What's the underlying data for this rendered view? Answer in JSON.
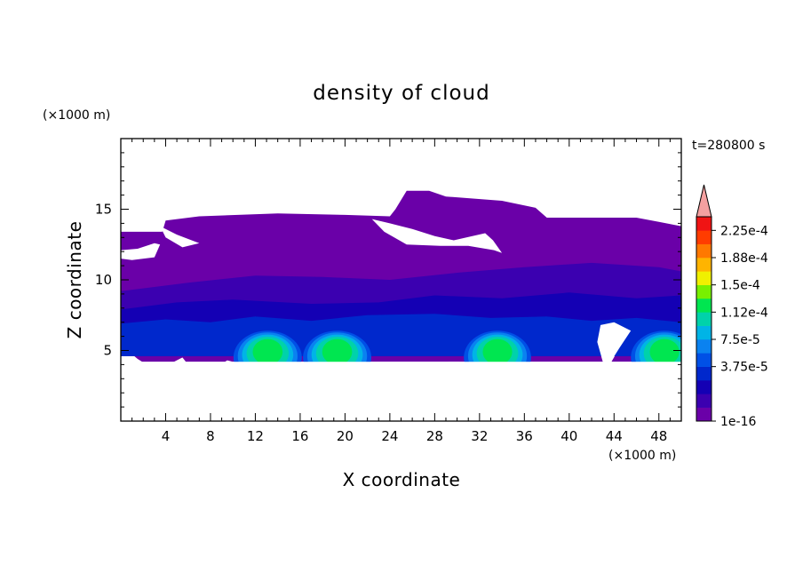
{
  "chart_data": {
    "type": "heatmap",
    "subtype": "filled-contour",
    "title": "density of cloud",
    "time_label": "t=280800 s",
    "xlabel": "X coordinate",
    "ylabel": "Z coordinate",
    "x_unit": "(×1000 m)",
    "y_unit": "(×1000 m)",
    "xlim": [
      0,
      50
    ],
    "ylim": [
      0,
      20
    ],
    "x_ticks": [
      "4",
      "8",
      "12",
      "16",
      "20",
      "24",
      "28",
      "32",
      "36",
      "40",
      "44",
      "48"
    ],
    "y_ticks": [
      "5",
      "10",
      "15"
    ],
    "colorbar": {
      "labels": [
        "2.25e-4",
        "1.88e-4",
        "1.5e-4",
        "1.12e-4",
        "7.5e-5",
        "3.75e-5",
        "1e-16"
      ],
      "colors": [
        "#6a00a8",
        "#3b00b0",
        "#1400b4",
        "#0028cc",
        "#0050e6",
        "#0a82f0",
        "#00b4e6",
        "#00d2aa",
        "#00e650",
        "#78f000",
        "#f0f000",
        "#ffb400",
        "#ff7800",
        "#ff3c00",
        "#f01414"
      ],
      "extend_color": "#f4a0a0"
    },
    "cloud_regions": [
      {
        "level": "1e-16",
        "x_range": [
          0,
          50
        ],
        "z_range": [
          4.2,
          16.3
        ]
      },
      {
        "level": "3.75e-5",
        "x_range": [
          0,
          50
        ],
        "z_range": [
          4.3,
          8.5
        ]
      },
      {
        "level": "1.12e-4",
        "x_range": [
          10,
          15
        ],
        "z_range": [
          5.5,
          6.4
        ]
      },
      {
        "level": "1.12e-4",
        "x_range": [
          17,
          21
        ],
        "z_range": [
          5.5,
          6.3
        ]
      },
      {
        "level": "1.12e-4",
        "x_range": [
          31,
          35
        ],
        "z_range": [
          5.5,
          6.3
        ]
      },
      {
        "level": "1.12e-4",
        "x_range": [
          46,
          50
        ],
        "z_range": [
          5.4,
          6.3
        ]
      }
    ]
  }
}
